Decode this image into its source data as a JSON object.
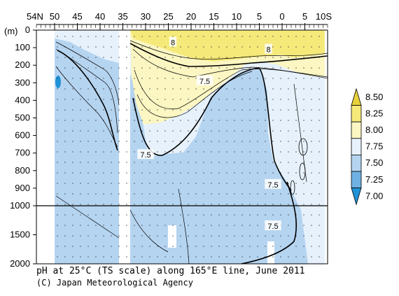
{
  "chart_data": {
    "type": "contour",
    "title": "pH at 25°C (TS scale) along 165°E line, June 2011",
    "credit": "(C) Japan Meteorological Agency",
    "x_axis": {
      "label_left": "54N",
      "label_right": "10S",
      "ticks": [
        {
          "lat": 50,
          "label": "50"
        },
        {
          "lat": 45,
          "label": "45"
        },
        {
          "lat": 40,
          "label": "40"
        },
        {
          "lat": 35,
          "label": "35"
        },
        {
          "lat": 30,
          "label": "30"
        },
        {
          "lat": 25,
          "label": "25"
        },
        {
          "lat": 20,
          "label": "20"
        },
        {
          "lat": 15,
          "label": "15"
        },
        {
          "lat": 10,
          "label": "10"
        },
        {
          "lat": 5,
          "label": "5"
        },
        {
          "lat": 0,
          "label": "0"
        },
        {
          "lat": -5,
          "label": "5"
        }
      ],
      "range": [
        54,
        -10
      ]
    },
    "y_axis": {
      "unit": "(m)",
      "ticks_upper": [
        0,
        100,
        200,
        300,
        400,
        500,
        600,
        700,
        800,
        900,
        1000
      ],
      "ticks_lower": [
        1500,
        2000
      ],
      "range": [
        0,
        2000
      ]
    },
    "legend": {
      "levels": [
        "8.50",
        "8.25",
        "8.00",
        "7.75",
        "7.50",
        "7.25",
        "7.00"
      ],
      "colors": [
        "#e8d13a",
        "#f5e97a",
        "#fbf6c2",
        "#e6f1fb",
        "#b5d4f0",
        "#6fb1e3",
        "#1f92d6"
      ]
    },
    "contour_labels": [
      {
        "text": "8",
        "lat": 24,
        "depth": 70
      },
      {
        "text": "8",
        "lat": 3,
        "depth": 110
      },
      {
        "text": "7.5",
        "lat": 17,
        "depth": 290
      },
      {
        "text": "7.5",
        "lat": 30,
        "depth": 710
      },
      {
        "text": "7.5",
        "lat": 2,
        "depth": 880
      },
      {
        "text": "7.5",
        "lat": 2,
        "depth": 1350
      }
    ]
  }
}
